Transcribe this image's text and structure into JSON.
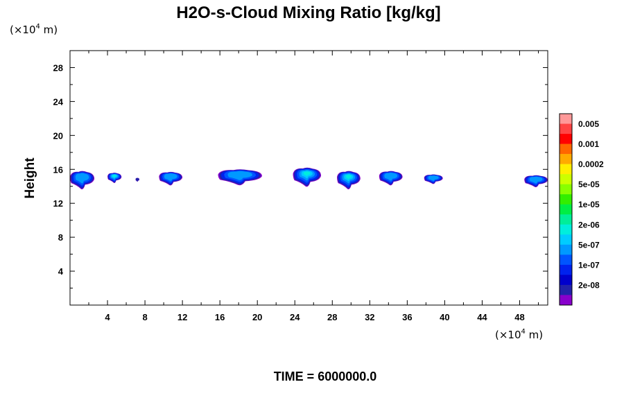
{
  "chart_data": {
    "type": "contour",
    "title": "H2O-s-Cloud Mixing Ratio [kg/kg]",
    "x_unit": {
      "prefix": "(×10",
      "exponent": "4",
      "suffix": " m)"
    },
    "y_unit": {
      "prefix": "(×10",
      "exponent": "4",
      "suffix": " m)"
    },
    "ylabel": "Height",
    "xlabel": "",
    "xlim": [
      0,
      51
    ],
    "ylim": [
      0,
      30
    ],
    "x_ticks": [
      4,
      8,
      12,
      16,
      20,
      24,
      28,
      32,
      36,
      40,
      44,
      48
    ],
    "y_ticks": [
      4,
      8,
      12,
      16,
      20,
      24,
      28
    ],
    "time_label": "TIME = 6000000.0",
    "colorbar": {
      "labels": [
        "0.005",
        "0.001",
        "0.0002",
        "5e-05",
        "1e-05",
        "2e-06",
        "5e-07",
        "1e-07",
        "2e-08"
      ],
      "colors_top_to_bottom": [
        "#ff9999",
        "#ff4444",
        "#ff0000",
        "#ff6600",
        "#ffaa00",
        "#ffee00",
        "#ccff00",
        "#88ff00",
        "#33ee00",
        "#00ee44",
        "#00ee99",
        "#00eedd",
        "#00ccff",
        "#0099ff",
        "#0055ff",
        "#0022ee",
        "#0000cc",
        "#2222aa",
        "#8800cc"
      ]
    },
    "cloud_blobs": [
      {
        "x_min": 0.0,
        "x_max": 2.6,
        "y_min": 13.5,
        "y_max": 15.8,
        "peak_level": "1e-07"
      },
      {
        "x_min": 4.0,
        "x_max": 5.5,
        "y_min": 14.3,
        "y_max": 15.6,
        "peak_level": "5e-07"
      },
      {
        "x_min": 7.0,
        "x_max": 7.4,
        "y_min": 14.5,
        "y_max": 15.0,
        "peak_level": "2e-08"
      },
      {
        "x_min": 9.5,
        "x_max": 12.0,
        "y_min": 14.0,
        "y_max": 15.7,
        "peak_level": "1e-07"
      },
      {
        "x_min": 15.8,
        "x_max": 20.5,
        "y_min": 14.0,
        "y_max": 16.0,
        "peak_level": "1e-07"
      },
      {
        "x_min": 23.8,
        "x_max": 26.8,
        "y_min": 13.8,
        "y_max": 16.2,
        "peak_level": "5e-07"
      },
      {
        "x_min": 28.5,
        "x_max": 31.0,
        "y_min": 13.5,
        "y_max": 15.8,
        "peak_level": "5e-07"
      },
      {
        "x_min": 33.0,
        "x_max": 35.5,
        "y_min": 14.0,
        "y_max": 15.8,
        "peak_level": "1e-07"
      },
      {
        "x_min": 37.8,
        "x_max": 39.8,
        "y_min": 14.2,
        "y_max": 15.4,
        "peak_level": "1e-07"
      },
      {
        "x_min": 48.5,
        "x_max": 51.0,
        "y_min": 13.8,
        "y_max": 15.3,
        "peak_level": "1e-07"
      }
    ]
  }
}
